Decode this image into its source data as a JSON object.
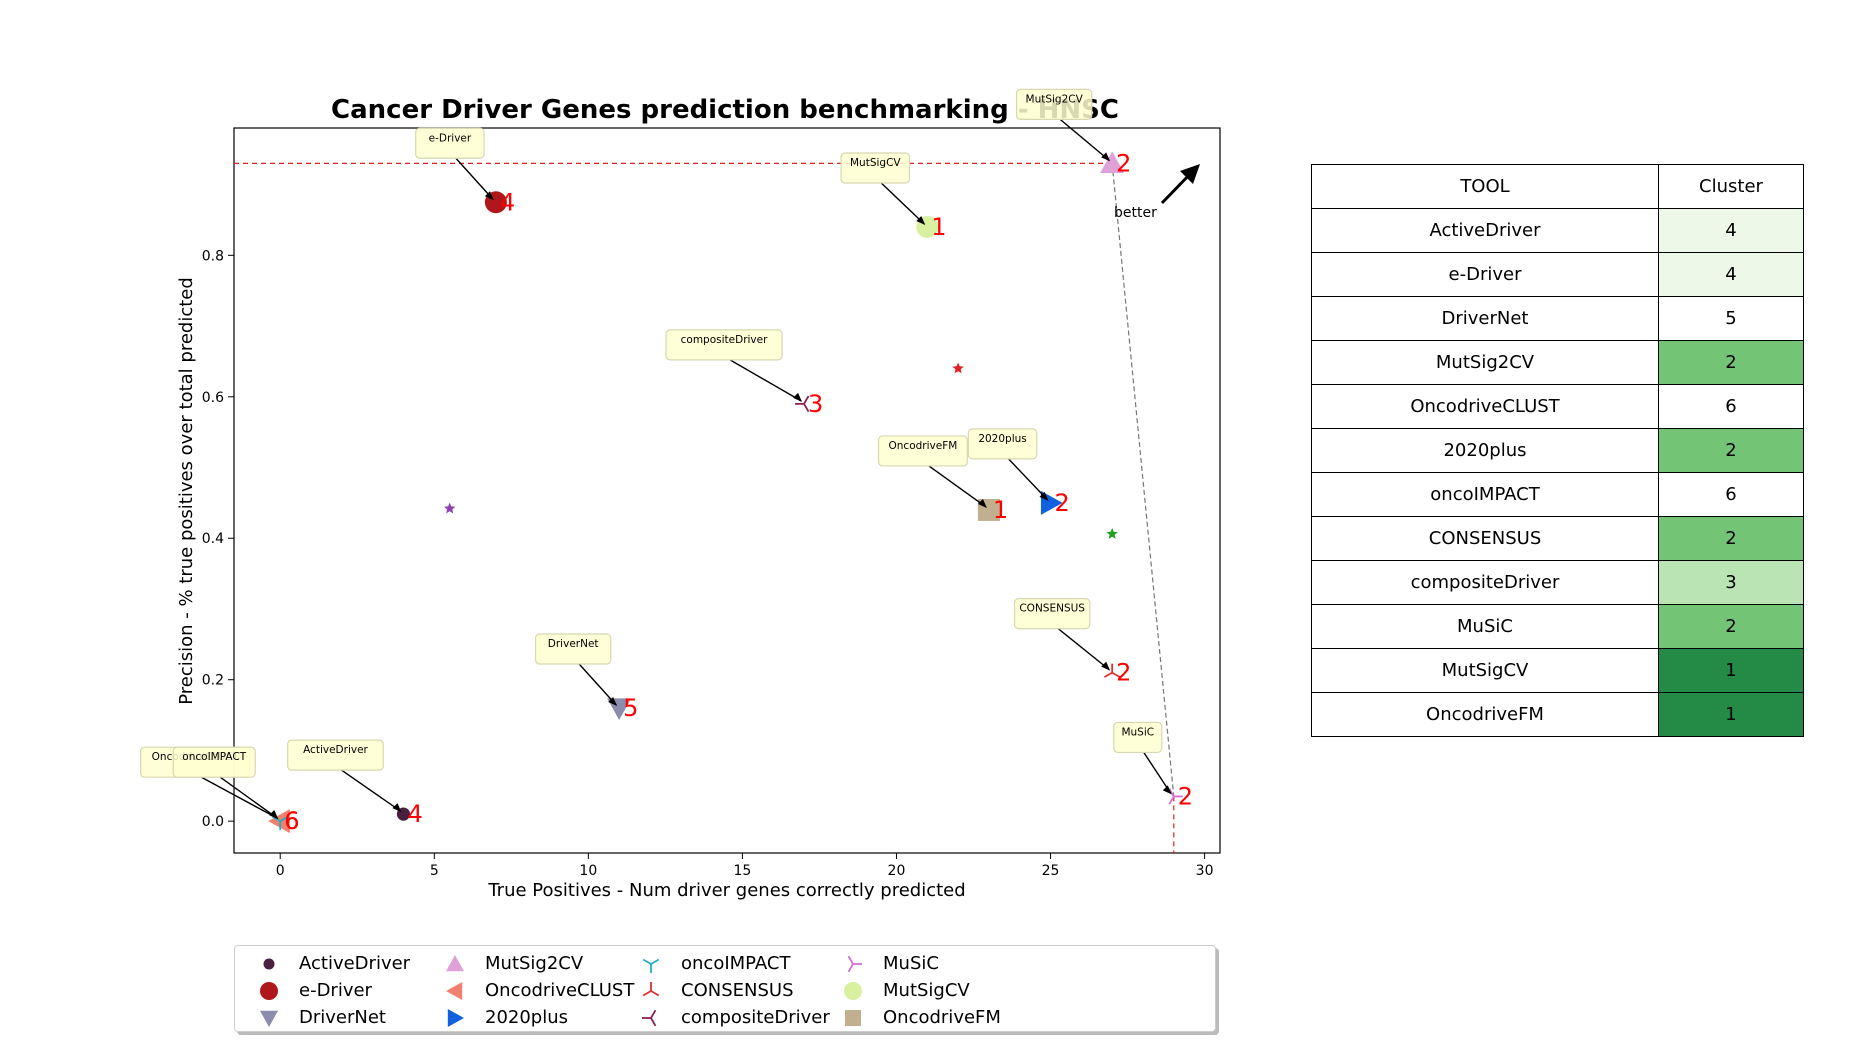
{
  "chart_data": {
    "type": "scatter",
    "title": "Cancer Driver Genes prediction benchmarking - HNSC",
    "xlabel": "True Positives - Num driver genes correctly predicted",
    "ylabel": "Precision - % true positives over total predicted",
    "xlim": [
      -1.5,
      30.5
    ],
    "ylim": [
      -0.045,
      0.98
    ],
    "xticks": [
      0,
      5,
      10,
      15,
      20,
      25,
      30
    ],
    "yticks": [
      0.0,
      0.2,
      0.4,
      0.6,
      0.8
    ],
    "xtick_labels": [
      "0",
      "5",
      "10",
      "15",
      "20",
      "25",
      "30"
    ],
    "ytick_labels": [
      "0.0",
      "0.2",
      "0.4",
      "0.6",
      "0.8"
    ],
    "better_label": "better",
    "reference_lines": {
      "max_precision": 0.93,
      "max_true_positives": 29
    },
    "pareto_frontier": [
      [
        27,
        0.93
      ],
      [
        29,
        0.035
      ]
    ],
    "series": [
      {
        "name": "ActiveDriver",
        "x": 4,
        "y": 0.01,
        "cluster": "4",
        "marker": "circle-small",
        "color": "#4a2040"
      },
      {
        "name": "e-Driver",
        "x": 7,
        "y": 0.875,
        "cluster": "4",
        "marker": "circle",
        "color": "#b0171b"
      },
      {
        "name": "DriverNet",
        "x": 11,
        "y": 0.16,
        "cluster": "5",
        "marker": "triangle-down",
        "color": "#8c8cac"
      },
      {
        "name": "MutSig2CV",
        "x": 27,
        "y": 0.93,
        "cluster": "2",
        "marker": "triangle-up",
        "color": "#e0a0d8"
      },
      {
        "name": "OncodriveCLUST",
        "x": 0,
        "y": 0.0,
        "cluster": "6",
        "marker": "triangle-left",
        "color": "#f08070"
      },
      {
        "name": "2020plus",
        "x": 25,
        "y": 0.45,
        "cluster": "2",
        "marker": "triangle-right",
        "color": "#1060e0"
      },
      {
        "name": "oncoIMPACT",
        "x": 0,
        "y": 0.0,
        "cluster": "6",
        "marker": "tri-down",
        "color": "#20b0c0"
      },
      {
        "name": "CONSENSUS",
        "x": 27,
        "y": 0.21,
        "cluster": "2",
        "marker": "tri-up",
        "color": "#e03030"
      },
      {
        "name": "compositeDriver",
        "x": 17,
        "y": 0.59,
        "cluster": "3",
        "marker": "tri-left",
        "color": "#8b2252"
      },
      {
        "name": "MuSiC",
        "x": 29,
        "y": 0.035,
        "cluster": "2",
        "marker": "tri-right",
        "color": "#d070d0"
      },
      {
        "name": "MutSigCV",
        "x": 21,
        "y": 0.84,
        "cluster": "1",
        "marker": "circle",
        "color": "#d8f0a0"
      },
      {
        "name": "OncodriveFM",
        "x": 23,
        "y": 0.44,
        "cluster": "1",
        "marker": "square",
        "color": "#c0b090"
      }
    ],
    "cluster_centroids": [
      {
        "x": 5.5,
        "y": 0.442,
        "color": "#9040b0"
      },
      {
        "x": 22,
        "y": 0.64,
        "color": "#e02020"
      },
      {
        "x": 27,
        "y": 0.406,
        "color": "#20a020"
      }
    ]
  },
  "table": {
    "headers": [
      "TOOL",
      "Cluster"
    ],
    "rows": [
      {
        "tool": "ActiveDriver",
        "cluster": "4",
        "color": "#edf8e9"
      },
      {
        "tool": "e-Driver",
        "cluster": "4",
        "color": "#edf8e9"
      },
      {
        "tool": "DriverNet",
        "cluster": "5",
        "color": "#ffffff"
      },
      {
        "tool": "MutSig2CV",
        "cluster": "2",
        "color": "#74c476"
      },
      {
        "tool": "OncodriveCLUST",
        "cluster": "6",
        "color": "#ffffff"
      },
      {
        "tool": "2020plus",
        "cluster": "2",
        "color": "#74c476"
      },
      {
        "tool": "oncoIMPACT",
        "cluster": "6",
        "color": "#ffffff"
      },
      {
        "tool": "CONSENSUS",
        "cluster": "2",
        "color": "#74c476"
      },
      {
        "tool": "compositeDriver",
        "cluster": "3",
        "color": "#bae4b3"
      },
      {
        "tool": "MuSiC",
        "cluster": "2",
        "color": "#74c476"
      },
      {
        "tool": "MutSigCV",
        "cluster": "1",
        "color": "#238b45"
      },
      {
        "tool": "OncodriveFM",
        "cluster": "1",
        "color": "#238b45"
      }
    ]
  },
  "legend": {
    "placement": "bottom",
    "items": [
      {
        "name": "ActiveDriver",
        "marker": "circle-small",
        "color": "#4a2040"
      },
      {
        "name": "e-Driver",
        "marker": "circle",
        "color": "#b0171b"
      },
      {
        "name": "DriverNet",
        "marker": "triangle-down",
        "color": "#8c8cac"
      },
      {
        "name": "MutSig2CV",
        "marker": "triangle-up",
        "color": "#e0a0d8"
      },
      {
        "name": "OncodriveCLUST",
        "marker": "triangle-left",
        "color": "#f08070"
      },
      {
        "name": "2020plus",
        "marker": "triangle-right",
        "color": "#1060e0"
      },
      {
        "name": "oncoIMPACT",
        "marker": "tri-down",
        "color": "#20b0c0"
      },
      {
        "name": "CONSENSUS",
        "marker": "tri-up",
        "color": "#e03030"
      },
      {
        "name": "compositeDriver",
        "marker": "tri-left",
        "color": "#8b2252"
      },
      {
        "name": "MuSiC",
        "marker": "tri-right",
        "color": "#d070d0"
      },
      {
        "name": "MutSigCV",
        "marker": "circle",
        "color": "#d8f0a0"
      },
      {
        "name": "OncodriveFM",
        "marker": "square",
        "color": "#c0b090"
      }
    ]
  }
}
